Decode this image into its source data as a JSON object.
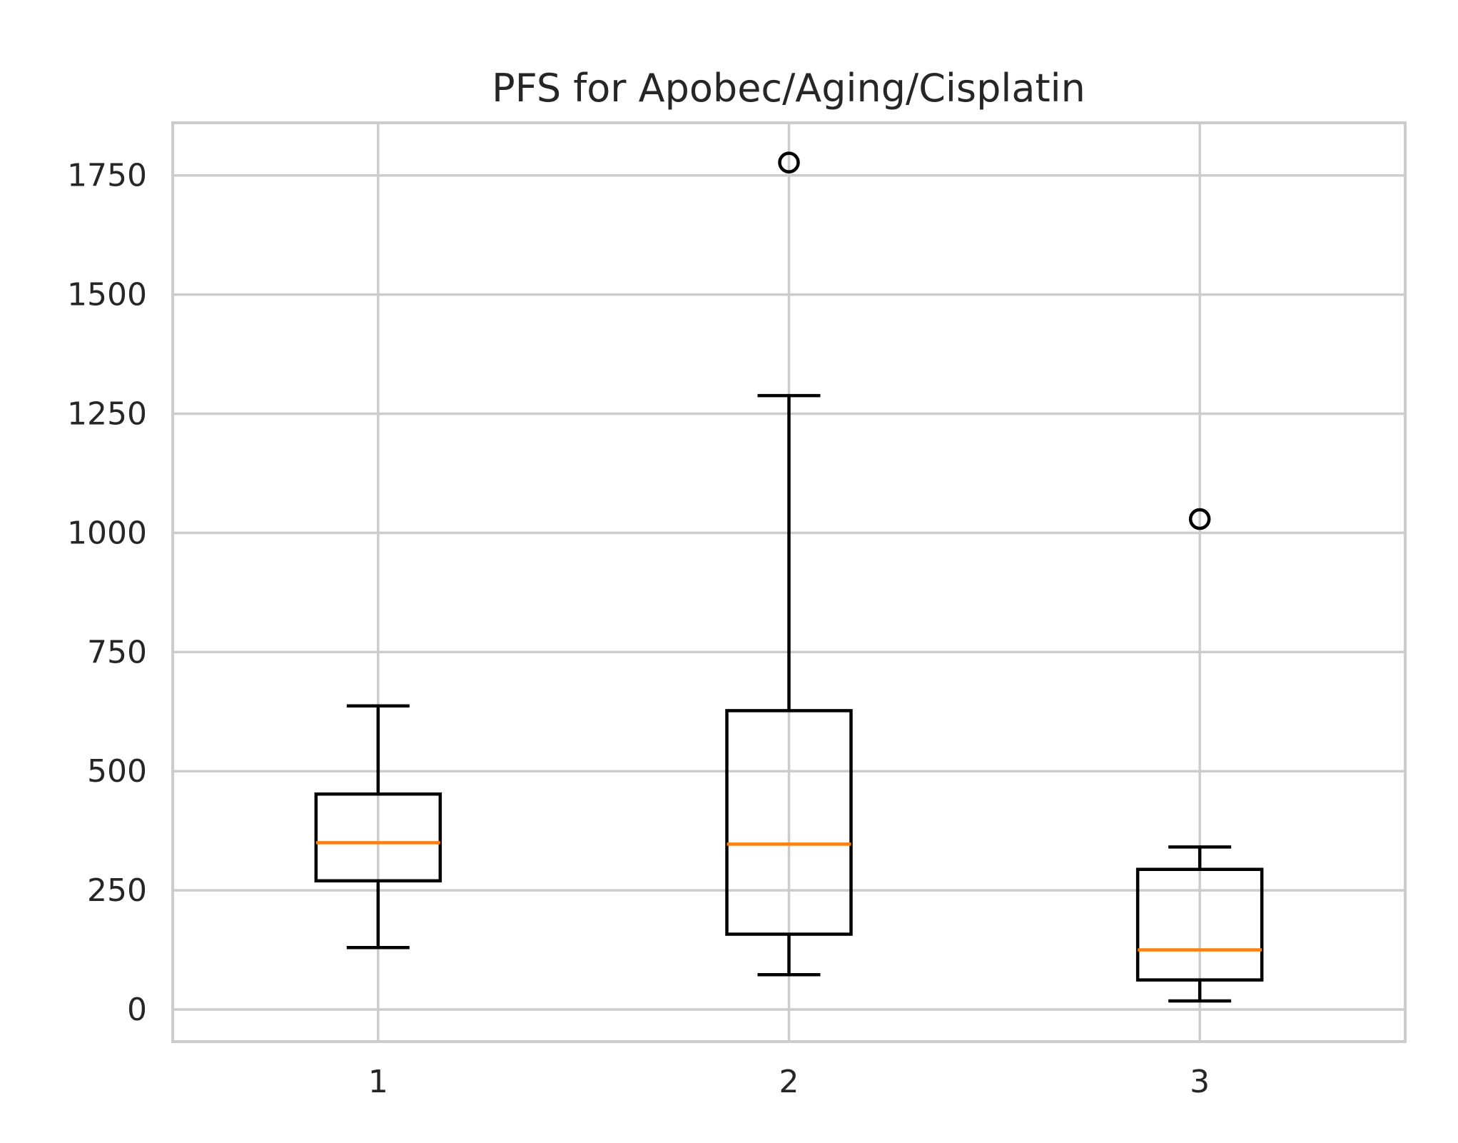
{
  "chart_data": {
    "type": "box",
    "title": "PFS for Apobec/Aging/Cisplatin",
    "xlabel": "",
    "ylabel": "",
    "categories": [
      "1",
      "2",
      "3"
    ],
    "yticks": [
      0,
      250,
      500,
      750,
      1000,
      1250,
      1500,
      1750
    ],
    "ylim": [
      -70,
      1865
    ],
    "grid": true,
    "boxes": [
      {
        "category": "1",
        "whisker_low": 130,
        "q1": 270,
        "median": 350,
        "q3": 452,
        "whisker_high": 637,
        "fliers": []
      },
      {
        "category": "2",
        "whisker_low": 73,
        "q1": 158,
        "median": 347,
        "q3": 627,
        "whisker_high": 1288,
        "fliers": [
          1777
        ]
      },
      {
        "category": "3",
        "whisker_low": 18,
        "q1": 62,
        "median": 125,
        "q3": 294,
        "whisker_high": 341,
        "fliers": [
          1029
        ]
      }
    ],
    "colors": {
      "box": "#000000",
      "median": "#ff7f0e",
      "grid": "#cccccc",
      "text": "#262626"
    }
  }
}
